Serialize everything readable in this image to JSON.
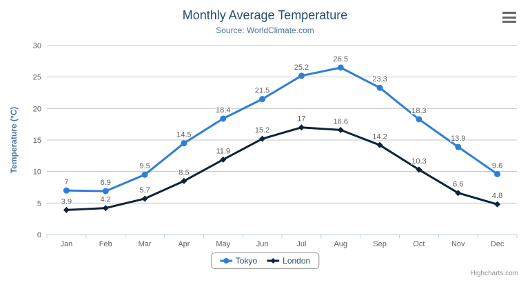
{
  "header": {
    "menu_icon": "hamburger-menu-icon"
  },
  "chart_data": {
    "type": "line",
    "title": "Monthly Average Temperature",
    "subtitle": "Source: WorldClimate.com",
    "categories": [
      "Jan",
      "Feb",
      "Mar",
      "Apr",
      "May",
      "Jun",
      "Jul",
      "Aug",
      "Sep",
      "Oct",
      "Nov",
      "Dec"
    ],
    "xlabel": "",
    "ylabel": "Temperature (°C)",
    "ylim": [
      0,
      30
    ],
    "ytick_interval": 5,
    "yticks": [
      0,
      5,
      10,
      15,
      20,
      25,
      30
    ],
    "grid": true,
    "data_labels": true,
    "legend_position": "bottom-center",
    "series": [
      {
        "name": "Tokyo",
        "color": "#2f7ed8",
        "marker": "circle",
        "values": [
          7,
          6.9,
          9.5,
          14.5,
          18.4,
          21.5,
          25.2,
          26.5,
          23.3,
          18.3,
          13.9,
          9.6
        ]
      },
      {
        "name": "London",
        "color": "#0d233a",
        "marker": "diamond",
        "values": [
          3.9,
          4.2,
          5.7,
          8.5,
          11.9,
          15.2,
          17,
          16.6,
          14.2,
          10.3,
          6.6,
          4.8
        ]
      }
    ]
  },
  "credits": {
    "label": "Highcharts.com"
  },
  "colors": {
    "title": "#274b6d",
    "subtitle": "#4d759e",
    "axis_label": "#606060",
    "axis_title": "#4d759e",
    "axis_line": "#c0d0e0",
    "gridline": "#c6c6c6",
    "data_label": "#606060",
    "legend_text": "#274b6d",
    "legend_border": "#909090",
    "credits": "#909090",
    "background": "#ffffff",
    "menu_icon": "#666666"
  }
}
